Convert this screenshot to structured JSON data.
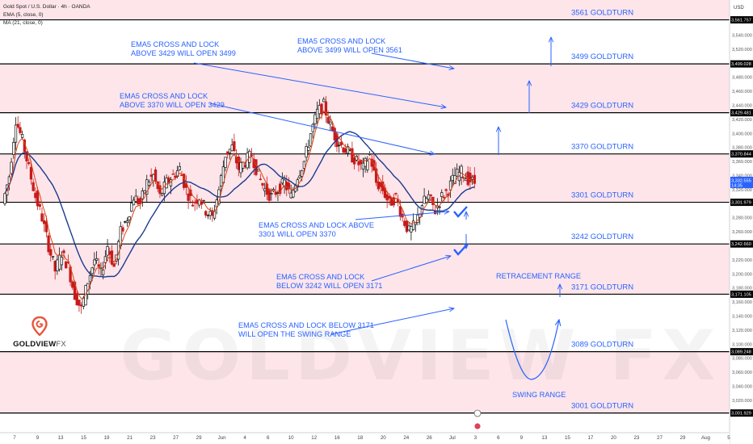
{
  "header": {
    "symbol_line": "Gold Spot / U.S. Dollar · 4h · OANDA",
    "indicator_1": "EMA (5, close, 0)",
    "indicator_2": "MA (21, close, 0)",
    "currency": "USD"
  },
  "brand": {
    "logo_text": "GOLDVIEW",
    "logo_suffix": "FX",
    "watermark": "GOLDVIEW FX",
    "icon": "location-pin-icon",
    "accent": "#e8543a"
  },
  "colors": {
    "band_fill": "#fde5ea",
    "level_line": "#000000",
    "annotation": "#2962ff",
    "ema5": "#d94418",
    "ma21": "#1a3a8f",
    "candle_up": "#111111",
    "candle_down": "#c81a1a"
  },
  "chart_data": {
    "type": "candlestick",
    "timeframe": "4h",
    "ylim": [
      2990,
      3590
    ],
    "price_ticks": [
      3000,
      3020,
      3040,
      3060,
      3080,
      3100,
      3120,
      3140,
      3160,
      3180,
      3200,
      3220,
      3240,
      3260,
      3280,
      3300,
      3320,
      3340,
      3360,
      3380,
      3400,
      3420,
      3440,
      3460,
      3480,
      3500,
      3520,
      3540,
      3560,
      3580
    ],
    "x_ticks": [
      "7",
      "9",
      "13",
      "15",
      "19",
      "21",
      "23",
      "27",
      "29",
      "Jun",
      "4",
      "6",
      "10",
      "12",
      "16",
      "18",
      "20",
      "24",
      "26",
      "Jul",
      "3",
      "6",
      "9",
      "13",
      "15",
      "17",
      "20",
      "23",
      "27",
      "29",
      "Aug",
      "5"
    ],
    "current_price": {
      "value": "3,332.555",
      "countdown": "14:35"
    },
    "levels": [
      {
        "price": 3561.757,
        "label": "3,561.757",
        "name": "3561 GOLDTURN"
      },
      {
        "price": 3499.028,
        "label": "3,499.028",
        "name": "3499 GOLDTURN"
      },
      {
        "price": 3429.481,
        "label": "3,429.481",
        "name": "3429 GOLDTURN"
      },
      {
        "price": 3370.844,
        "label": "3,370.844",
        "name": "3370 GOLDTURN"
      },
      {
        "price": 3301.979,
        "label": "3,301.979",
        "name": "3301 GOLDTURN"
      },
      {
        "price": 3242.66,
        "label": "3,242.660",
        "name": "3242 GOLDTURN"
      },
      {
        "price": 3171.105,
        "label": "3,171.105",
        "name": "3171 GOLDTURN"
      },
      {
        "price": 3089.248,
        "label": "3,089.248",
        "name": "3089 GOLDTURN"
      },
      {
        "price": 3001.929,
        "label": "3,001.929",
        "name": "3001 GOLDTURN"
      }
    ],
    "shaded_bands": [
      [
        3561.757,
        3590
      ],
      [
        3429.481,
        3499.028
      ],
      [
        3301.979,
        3370.844
      ],
      [
        3171.105,
        3242.66
      ],
      [
        3001.929,
        3089.248
      ]
    ],
    "close_path": [
      3300,
      3340,
      3420,
      3390,
      3350,
      3310,
      3280,
      3240,
      3205,
      3230,
      3210,
      3170,
      3150,
      3190,
      3220,
      3200,
      3240,
      3210,
      3260,
      3280,
      3310,
      3300,
      3330,
      3340,
      3310,
      3330,
      3340,
      3350,
      3320,
      3300,
      3310,
      3290,
      3280,
      3320,
      3370,
      3380,
      3350,
      3360,
      3370,
      3340,
      3320,
      3310,
      3320,
      3330,
      3310,
      3340,
      3360,
      3400,
      3430,
      3440,
      3410,
      3390,
      3380,
      3370,
      3360,
      3350,
      3370,
      3330,
      3320,
      3300,
      3310,
      3280,
      3260,
      3270,
      3300,
      3310,
      3290,
      3310,
      3320,
      3340,
      3345,
      3335,
      3330
    ],
    "annotations": [
      {
        "lines": [
          "EMA5 CROSS AND LOCK",
          "ABOVE 3429 WILL OPEN 3499"
        ]
      },
      {
        "lines": [
          "EMA5 CROSS AND LOCK",
          "ABOVE 3499 WILL OPEN 3561"
        ]
      },
      {
        "lines": [
          "EMA5 CROSS AND LOCK",
          "ABOVE 3370 WILL OPEN 3429"
        ]
      },
      {
        "lines": [
          "EMA5 CROSS AND LOCK ABOVE",
          "3301 WILL OPEN 3370"
        ]
      },
      {
        "lines": [
          "EMA5 CROSS AND LOCK",
          "BELOW 3242 WILL OPEN 3171"
        ]
      },
      {
        "lines": [
          "EMA5 CROSS AND LOCK BELOW 3171",
          "WILL OPEN THE SWING RANGE"
        ]
      },
      {
        "lines": [
          "RETRACEMENT RANGE"
        ]
      },
      {
        "lines": [
          "SWING RANGE"
        ]
      }
    ]
  }
}
